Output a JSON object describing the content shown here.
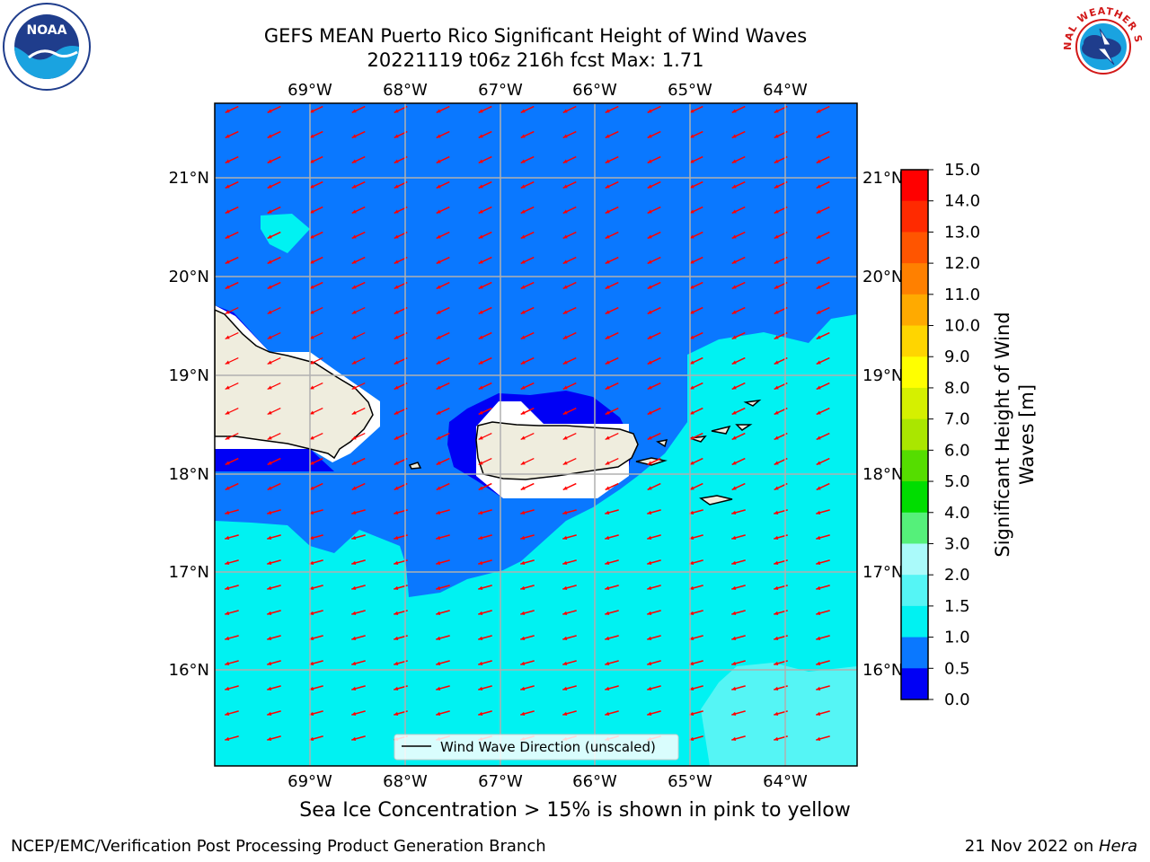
{
  "title": {
    "line1": "GEFS MEAN Puerto Rico Significant Height of Wind Waves",
    "line2": "20221119 t06z 216h fcst   Max: 1.71"
  },
  "map": {
    "lon_labels": [
      "69°W",
      "68°W",
      "67°W",
      "66°W",
      "65°W",
      "64°W"
    ],
    "lat_labels": [
      "21°N",
      "20°N",
      "19°N",
      "18°N",
      "17°N",
      "16°N"
    ],
    "legend_label": "Wind Wave Direction (unscaled)",
    "colors": {
      "land": "#efedde",
      "band_0_0p5": "#0000f5",
      "band_0p5_1": "#0a78ff",
      "band_1_1p5": "#00f2f2",
      "band_1p5_2": "#55f5f5",
      "arrow": "#ff0000"
    }
  },
  "colorbar": {
    "label_line1": "Significant Height of Wind",
    "label_line2": "Waves [m]",
    "ticks": [
      "15.0",
      "14.0",
      "13.0",
      "12.0",
      "11.0",
      "10.0",
      "9.0",
      "8.0",
      "7.0",
      "6.0",
      "5.0",
      "4.0",
      "3.0",
      "2.0",
      "1.5",
      "1.0",
      "0.5",
      "0.0"
    ],
    "colors_top_to_bottom": [
      "#ff0000",
      "#ff2a00",
      "#ff5500",
      "#ff8000",
      "#ffaa00",
      "#ffd500",
      "#ffff00",
      "#d5f000",
      "#aae600",
      "#55dd00",
      "#00dd00",
      "#55f07a",
      "#aafafa",
      "#55f5f5",
      "#00f2f2",
      "#0a78ff",
      "#0000f5"
    ]
  },
  "note": "Sea Ice Concentration > 15% is shown in pink to yellow",
  "footer": {
    "left": "NCEP/EMC/Verification Post Processing Product Generation Branch",
    "right_prefix": "21 Nov 2022 on ",
    "right_host": "Hera"
  },
  "logos": {
    "noaa_text": "NOAA",
    "nws_text": "NATIONAL WEATHER SERVICE"
  }
}
